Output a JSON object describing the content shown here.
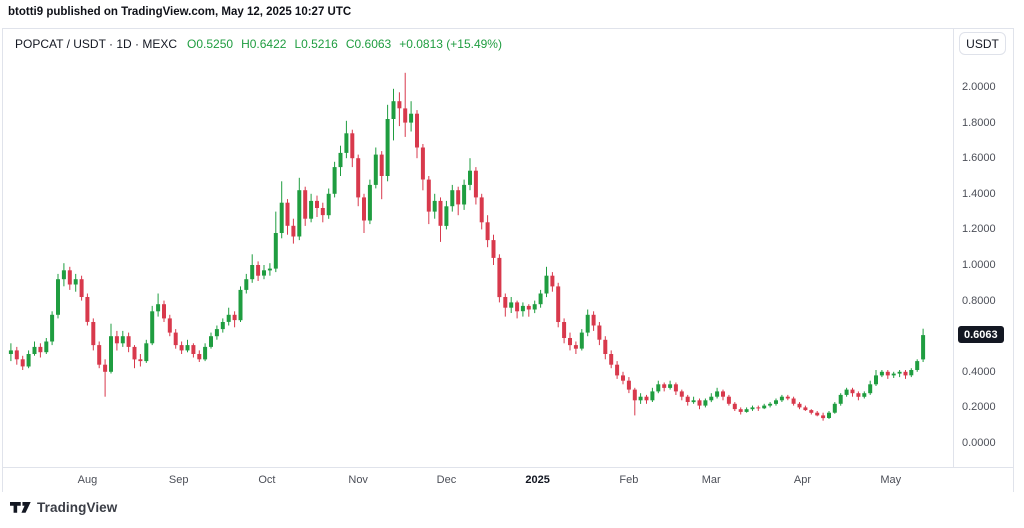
{
  "attribution": "btotti9 published on TradingView.com, May 12, 2025 10:27 UTC",
  "legend": {
    "symbol": "POPCAT / USDT · 1D · MEXC",
    "open": "O0.5250",
    "high": "H0.6422",
    "low": "L0.5216",
    "close": "C0.6063",
    "change": "+0.0813 (+15.49%)"
  },
  "price_scale": {
    "currency_button": "USDT",
    "last_price_label": "0.6063"
  },
  "footer": {
    "brand": "TradingView"
  },
  "colors": {
    "up": "#1f9d40",
    "down": "#d8394c",
    "badge_bg": "#131722",
    "border": "#e0e3eb",
    "text_dark": "#131722",
    "text_gray": "#4c4f58"
  },
  "chart_data": {
    "type": "candlestick",
    "title": "POPCAT / USDT",
    "interval": "1D",
    "exchange": "MEXC",
    "last": {
      "open": 0.525,
      "high": 0.6422,
      "low": 0.5216,
      "close": 0.6063,
      "change": "+0.0813",
      "change_pct": "+15.49%"
    },
    "grid": false,
    "legend_position": "top-left",
    "y_axis": {
      "side": "right",
      "visible_range": [
        -0.13,
        2.33
      ],
      "ticks": [
        {
          "label": "2.0000",
          "value": 2.0
        },
        {
          "label": "1.8000",
          "value": 1.8
        },
        {
          "label": "1.6000",
          "value": 1.6
        },
        {
          "label": "1.4000",
          "value": 1.4
        },
        {
          "label": "1.2000",
          "value": 1.2
        },
        {
          "label": "1.0000",
          "value": 1.0
        },
        {
          "label": "0.8000",
          "value": 0.8
        },
        {
          "label": "0.4000",
          "value": 0.4
        },
        {
          "label": "0.2000",
          "value": 0.2
        },
        {
          "label": "0.0000",
          "value": 0.0
        }
      ]
    },
    "x_axis": {
      "start_date": "2024-07-05",
      "end_date": "2025-05-12",
      "days_per_candle": 2,
      "ticks": [
        {
          "label": "Aug",
          "day": 27
        },
        {
          "label": "Sep",
          "day": 58
        },
        {
          "label": "Oct",
          "day": 88
        },
        {
          "label": "Nov",
          "day": 119
        },
        {
          "label": "Dec",
          "day": 149
        },
        {
          "label": "2025",
          "day": 180,
          "major": true
        },
        {
          "label": "Feb",
          "day": 211
        },
        {
          "label": "Mar",
          "day": 239
        },
        {
          "label": "Apr",
          "day": 270
        },
        {
          "label": "May",
          "day": 300
        }
      ]
    },
    "candles": [
      [
        0.5,
        0.56,
        0.46,
        0.52
      ],
      [
        0.52,
        0.54,
        0.44,
        0.47
      ],
      [
        0.47,
        0.49,
        0.41,
        0.43
      ],
      [
        0.43,
        0.52,
        0.42,
        0.5
      ],
      [
        0.5,
        0.57,
        0.49,
        0.54
      ],
      [
        0.54,
        0.56,
        0.48,
        0.51
      ],
      [
        0.51,
        0.59,
        0.5,
        0.57
      ],
      [
        0.57,
        0.74,
        0.55,
        0.72
      ],
      [
        0.72,
        0.95,
        0.7,
        0.92
      ],
      [
        0.92,
        1.01,
        0.88,
        0.97
      ],
      [
        0.97,
        0.99,
        0.86,
        0.89
      ],
      [
        0.89,
        0.95,
        0.85,
        0.92
      ],
      [
        0.92,
        0.94,
        0.8,
        0.82
      ],
      [
        0.82,
        0.84,
        0.66,
        0.68
      ],
      [
        0.68,
        0.7,
        0.52,
        0.55
      ],
      [
        0.55,
        0.57,
        0.42,
        0.44
      ],
      [
        0.44,
        0.47,
        0.26,
        0.4
      ],
      [
        0.4,
        0.67,
        0.39,
        0.6
      ],
      [
        0.6,
        0.63,
        0.52,
        0.56
      ],
      [
        0.56,
        0.63,
        0.54,
        0.6
      ],
      [
        0.6,
        0.62,
        0.51,
        0.54
      ],
      [
        0.54,
        0.55,
        0.42,
        0.47
      ],
      [
        0.47,
        0.5,
        0.43,
        0.46
      ],
      [
        0.46,
        0.58,
        0.45,
        0.56
      ],
      [
        0.56,
        0.77,
        0.55,
        0.74
      ],
      [
        0.74,
        0.84,
        0.71,
        0.78
      ],
      [
        0.78,
        0.8,
        0.68,
        0.7
      ],
      [
        0.7,
        0.72,
        0.6,
        0.62
      ],
      [
        0.62,
        0.64,
        0.53,
        0.55
      ],
      [
        0.55,
        0.57,
        0.5,
        0.52
      ],
      [
        0.52,
        0.58,
        0.51,
        0.55
      ],
      [
        0.55,
        0.56,
        0.48,
        0.5
      ],
      [
        0.5,
        0.52,
        0.455,
        0.47
      ],
      [
        0.47,
        0.56,
        0.46,
        0.54
      ],
      [
        0.54,
        0.62,
        0.53,
        0.6
      ],
      [
        0.6,
        0.66,
        0.58,
        0.64
      ],
      [
        0.64,
        0.7,
        0.62,
        0.68
      ],
      [
        0.68,
        0.76,
        0.66,
        0.72
      ],
      [
        0.72,
        0.74,
        0.65,
        0.69
      ],
      [
        0.69,
        0.88,
        0.68,
        0.86
      ],
      [
        0.86,
        0.95,
        0.84,
        0.92
      ],
      [
        0.92,
        1.06,
        0.9,
        1.0
      ],
      [
        1.0,
        1.02,
        0.91,
        0.94
      ],
      [
        0.94,
        1.0,
        0.92,
        0.97
      ],
      [
        0.97,
        1.01,
        0.94,
        0.98
      ],
      [
        0.98,
        1.3,
        0.96,
        1.18
      ],
      [
        1.18,
        1.47,
        1.15,
        1.35
      ],
      [
        1.35,
        1.37,
        1.17,
        1.22
      ],
      [
        1.22,
        1.26,
        1.12,
        1.16
      ],
      [
        1.16,
        1.49,
        1.14,
        1.42
      ],
      [
        1.42,
        1.44,
        1.22,
        1.26
      ],
      [
        1.26,
        1.4,
        1.24,
        1.36
      ],
      [
        1.36,
        1.39,
        1.27,
        1.32
      ],
      [
        1.32,
        1.35,
        1.24,
        1.28
      ],
      [
        1.28,
        1.43,
        1.26,
        1.4
      ],
      [
        1.4,
        1.58,
        1.38,
        1.55
      ],
      [
        1.55,
        1.67,
        1.5,
        1.63
      ],
      [
        1.63,
        1.81,
        1.6,
        1.74
      ],
      [
        1.74,
        1.76,
        1.55,
        1.6
      ],
      [
        1.6,
        1.62,
        1.33,
        1.38
      ],
      [
        1.38,
        1.4,
        1.18,
        1.25
      ],
      [
        1.25,
        1.48,
        1.23,
        1.45
      ],
      [
        1.45,
        1.66,
        1.43,
        1.62
      ],
      [
        1.62,
        1.64,
        1.37,
        1.5
      ],
      [
        1.5,
        1.9,
        1.47,
        1.82
      ],
      [
        1.82,
        1.99,
        1.7,
        1.92
      ],
      [
        1.92,
        1.97,
        1.78,
        1.88
      ],
      [
        1.88,
        2.08,
        1.72,
        1.8
      ],
      [
        1.8,
        1.92,
        1.75,
        1.85
      ],
      [
        1.85,
        1.87,
        1.6,
        1.66
      ],
      [
        1.66,
        1.68,
        1.42,
        1.48
      ],
      [
        1.48,
        1.5,
        1.23,
        1.3
      ],
      [
        1.3,
        1.4,
        1.26,
        1.36
      ],
      [
        1.36,
        1.38,
        1.13,
        1.22
      ],
      [
        1.22,
        1.36,
        1.2,
        1.33
      ],
      [
        1.33,
        1.45,
        1.3,
        1.42
      ],
      [
        1.42,
        1.44,
        1.28,
        1.34
      ],
      [
        1.34,
        1.48,
        1.31,
        1.45
      ],
      [
        1.45,
        1.6,
        1.42,
        1.53
      ],
      [
        1.53,
        1.55,
        1.34,
        1.38
      ],
      [
        1.38,
        1.4,
        1.2,
        1.24
      ],
      [
        1.24,
        1.28,
        1.1,
        1.14
      ],
      [
        1.14,
        1.17,
        1.0,
        1.04
      ],
      [
        1.04,
        1.06,
        0.79,
        0.82
      ],
      [
        0.82,
        0.84,
        0.71,
        0.76
      ],
      [
        0.76,
        0.82,
        0.73,
        0.79
      ],
      [
        0.79,
        0.8,
        0.7,
        0.74
      ],
      [
        0.74,
        0.79,
        0.71,
        0.77
      ],
      [
        0.77,
        0.78,
        0.71,
        0.75
      ],
      [
        0.75,
        0.8,
        0.73,
        0.78
      ],
      [
        0.78,
        0.86,
        0.76,
        0.84
      ],
      [
        0.84,
        0.99,
        0.82,
        0.94
      ],
      [
        0.94,
        0.96,
        0.85,
        0.88
      ],
      [
        0.88,
        0.9,
        0.65,
        0.68
      ],
      [
        0.68,
        0.7,
        0.56,
        0.59
      ],
      [
        0.59,
        0.62,
        0.52,
        0.55
      ],
      [
        0.55,
        0.57,
        0.5,
        0.53
      ],
      [
        0.53,
        0.64,
        0.52,
        0.62
      ],
      [
        0.62,
        0.75,
        0.6,
        0.72
      ],
      [
        0.72,
        0.74,
        0.63,
        0.66
      ],
      [
        0.66,
        0.68,
        0.55,
        0.58
      ],
      [
        0.58,
        0.6,
        0.47,
        0.5
      ],
      [
        0.5,
        0.52,
        0.42,
        0.44
      ],
      [
        0.44,
        0.46,
        0.36,
        0.38
      ],
      [
        0.38,
        0.4,
        0.33,
        0.35
      ],
      [
        0.35,
        0.37,
        0.28,
        0.3
      ],
      [
        0.3,
        0.31,
        0.155,
        0.24
      ],
      [
        0.24,
        0.28,
        0.22,
        0.26
      ],
      [
        0.26,
        0.27,
        0.22,
        0.24
      ],
      [
        0.24,
        0.31,
        0.23,
        0.29
      ],
      [
        0.29,
        0.35,
        0.28,
        0.33
      ],
      [
        0.33,
        0.34,
        0.29,
        0.31
      ],
      [
        0.31,
        0.35,
        0.3,
        0.33
      ],
      [
        0.33,
        0.34,
        0.27,
        0.29
      ],
      [
        0.29,
        0.3,
        0.24,
        0.26
      ],
      [
        0.26,
        0.27,
        0.21,
        0.23
      ],
      [
        0.23,
        0.26,
        0.22,
        0.24
      ],
      [
        0.24,
        0.25,
        0.19,
        0.21
      ],
      [
        0.21,
        0.25,
        0.2,
        0.24
      ],
      [
        0.24,
        0.28,
        0.23,
        0.26
      ],
      [
        0.26,
        0.31,
        0.25,
        0.29
      ],
      [
        0.29,
        0.3,
        0.24,
        0.26
      ],
      [
        0.26,
        0.27,
        0.21,
        0.22
      ],
      [
        0.22,
        0.23,
        0.18,
        0.19
      ],
      [
        0.19,
        0.2,
        0.16,
        0.175
      ],
      [
        0.175,
        0.2,
        0.17,
        0.19
      ],
      [
        0.19,
        0.21,
        0.18,
        0.2
      ],
      [
        0.2,
        0.21,
        0.18,
        0.195
      ],
      [
        0.195,
        0.22,
        0.19,
        0.21
      ],
      [
        0.21,
        0.23,
        0.2,
        0.22
      ],
      [
        0.22,
        0.25,
        0.21,
        0.24
      ],
      [
        0.24,
        0.27,
        0.23,
        0.26
      ],
      [
        0.26,
        0.27,
        0.24,
        0.25
      ],
      [
        0.25,
        0.26,
        0.21,
        0.22
      ],
      [
        0.22,
        0.23,
        0.19,
        0.2
      ],
      [
        0.2,
        0.21,
        0.18,
        0.185
      ],
      [
        0.185,
        0.19,
        0.16,
        0.17
      ],
      [
        0.17,
        0.18,
        0.15,
        0.155
      ],
      [
        0.155,
        0.17,
        0.125,
        0.14
      ],
      [
        0.14,
        0.18,
        0.135,
        0.17
      ],
      [
        0.17,
        0.23,
        0.165,
        0.22
      ],
      [
        0.22,
        0.28,
        0.21,
        0.27
      ],
      [
        0.27,
        0.31,
        0.26,
        0.3
      ],
      [
        0.3,
        0.31,
        0.26,
        0.28
      ],
      [
        0.28,
        0.29,
        0.24,
        0.26
      ],
      [
        0.26,
        0.29,
        0.25,
        0.28
      ],
      [
        0.28,
        0.35,
        0.27,
        0.33
      ],
      [
        0.33,
        0.41,
        0.32,
        0.38
      ],
      [
        0.38,
        0.41,
        0.37,
        0.4
      ],
      [
        0.4,
        0.41,
        0.36,
        0.38
      ],
      [
        0.38,
        0.4,
        0.365,
        0.39
      ],
      [
        0.39,
        0.41,
        0.37,
        0.4
      ],
      [
        0.4,
        0.41,
        0.36,
        0.38
      ],
      [
        0.38,
        0.42,
        0.37,
        0.41
      ],
      [
        0.41,
        0.47,
        0.4,
        0.46
      ],
      [
        0.47,
        0.6422,
        0.455,
        0.6063
      ]
    ]
  }
}
